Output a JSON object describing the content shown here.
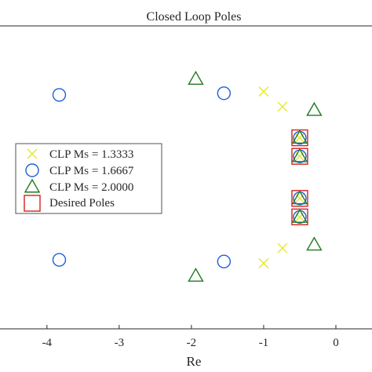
{
  "chart_data": {
    "type": "scatter",
    "title": "Closed Loop Poles",
    "xlabel": "Re",
    "ylabel": "",
    "xlim": [
      -4.65,
      0.5
    ],
    "ylim": [
      -1.8,
      1.8
    ],
    "x_ticks": [
      {
        "value": -4,
        "label": "-4"
      },
      {
        "value": -3,
        "label": "-3"
      },
      {
        "value": -2,
        "label": "-2"
      },
      {
        "value": -1,
        "label": "-1"
      },
      {
        "value": 0,
        "label": "0"
      }
    ],
    "legend": {
      "placement": "left",
      "entries": [
        {
          "prefix": "CLP M",
          "subscript": "S",
          "suffix": " = 1.3333"
        },
        {
          "prefix": "CLP M",
          "subscript": "S",
          "suffix": " = 1.6667"
        },
        {
          "prefix": "CLP M",
          "subscript": "S",
          "suffix": " = 2.0000"
        },
        {
          "prefix": "Desired Poles",
          "subscript": "",
          "suffix": ""
        }
      ]
    },
    "series": [
      {
        "marker": "x",
        "color": "#e6e632",
        "points": [
          [
            -1.0,
            1.02
          ],
          [
            -0.74,
            0.84
          ],
          [
            -0.5,
            0.47
          ],
          [
            -0.5,
            0.25
          ],
          [
            -0.5,
            -0.25
          ],
          [
            -0.5,
            -0.47
          ],
          [
            -0.74,
            -0.84
          ],
          [
            -1.0,
            -1.02
          ]
        ]
      },
      {
        "marker": "circle",
        "color": "#1f5fd6",
        "points": [
          [
            -3.83,
            0.98
          ],
          [
            -1.55,
            1.0
          ],
          [
            -0.5,
            0.47
          ],
          [
            -0.5,
            0.25
          ],
          [
            -0.5,
            -0.25
          ],
          [
            -0.5,
            -0.47
          ],
          [
            -1.55,
            -1.0
          ],
          [
            -3.83,
            -0.98
          ]
        ]
      },
      {
        "marker": "triangle",
        "color": "#1f7a1f",
        "points": [
          [
            -1.94,
            1.17
          ],
          [
            -0.3,
            0.8
          ],
          [
            -0.5,
            0.47
          ],
          [
            -0.5,
            0.25
          ],
          [
            -0.5,
            -0.25
          ],
          [
            -0.5,
            -0.47
          ],
          [
            -0.3,
            -0.8
          ],
          [
            -1.94,
            -1.17
          ]
        ]
      },
      {
        "marker": "square",
        "color": "#d62020",
        "points": [
          [
            -0.5,
            0.47
          ],
          [
            -0.5,
            0.25
          ],
          [
            -0.5,
            -0.25
          ],
          [
            -0.5,
            -0.47
          ]
        ]
      }
    ]
  }
}
